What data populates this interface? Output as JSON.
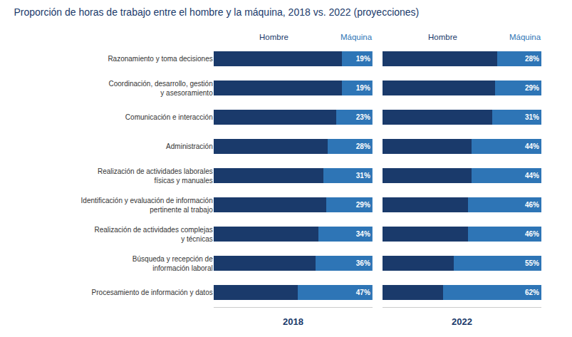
{
  "title": "Proporción de horas de trabajo entre el hombre y la máquina, 2018 vs. 2022 (proyecciones)",
  "chart_data": [
    {
      "type": "bar",
      "title": "2018",
      "orientation": "horizontal",
      "stacked": true,
      "categories": [
        "Razonamiento y toma decisiones",
        "Coordinación, desarrollo, gestión\ny asesoramiento",
        "Comunicación e interacción",
        "Administración",
        "Realización de actividades laborales\nfísicas y manuales",
        "Identificación y evaluación de información\npertinente al trabajo",
        "Realización de actividades complejas\ny técnicas",
        "Búsqueda y recepción de\ninformación laboral",
        "Procesamiento de información y datos"
      ],
      "series": [
        {
          "name": "Hombre",
          "color": "#1a3a6b",
          "values": [
            81,
            81,
            77,
            72,
            69,
            71,
            66,
            64,
            53
          ],
          "data_labels": false
        },
        {
          "name": "Máquina",
          "color": "#2e75b6",
          "values": [
            19,
            19,
            23,
            28,
            31,
            29,
            34,
            36,
            47
          ],
          "value_labels": [
            "19%",
            "19%",
            "23%",
            "28%",
            "31%",
            "29%",
            "34%",
            "36%",
            "47%"
          ],
          "data_labels": true
        }
      ],
      "xlim": [
        0,
        100
      ],
      "xticks": [],
      "grid": false,
      "tick_labels": "y"
    },
    {
      "type": "bar",
      "title": "2022",
      "orientation": "horizontal",
      "stacked": true,
      "categories": [
        "Razonamiento y toma decisiones",
        "Coordinación, desarrollo, gestión\ny asesoramiento",
        "Comunicación e interacción",
        "Administración",
        "Realización de actividades laborales\nfísicas y manuales",
        "Identificación y evaluación de información\npertinente al trabajo",
        "Realización de actividades complejas\ny técnicas",
        "Búsqueda y recepción de\ninformación laboral",
        "Procesamiento de información y datos"
      ],
      "series": [
        {
          "name": "Hombre",
          "color": "#1a3a6b",
          "values": [
            72,
            71,
            69,
            56,
            56,
            54,
            54,
            45,
            38
          ],
          "data_labels": false
        },
        {
          "name": "Máquina",
          "color": "#2e75b6",
          "values": [
            28,
            29,
            31,
            44,
            44,
            46,
            46,
            55,
            62
          ],
          "value_labels": [
            "28%",
            "29%",
            "31%",
            "44%",
            "44%",
            "46%",
            "46%",
            "55%",
            "62%"
          ],
          "data_labels": true
        }
      ],
      "xlim": [
        0,
        100
      ],
      "xticks": [],
      "grid": false,
      "tick_labels": false
    }
  ]
}
